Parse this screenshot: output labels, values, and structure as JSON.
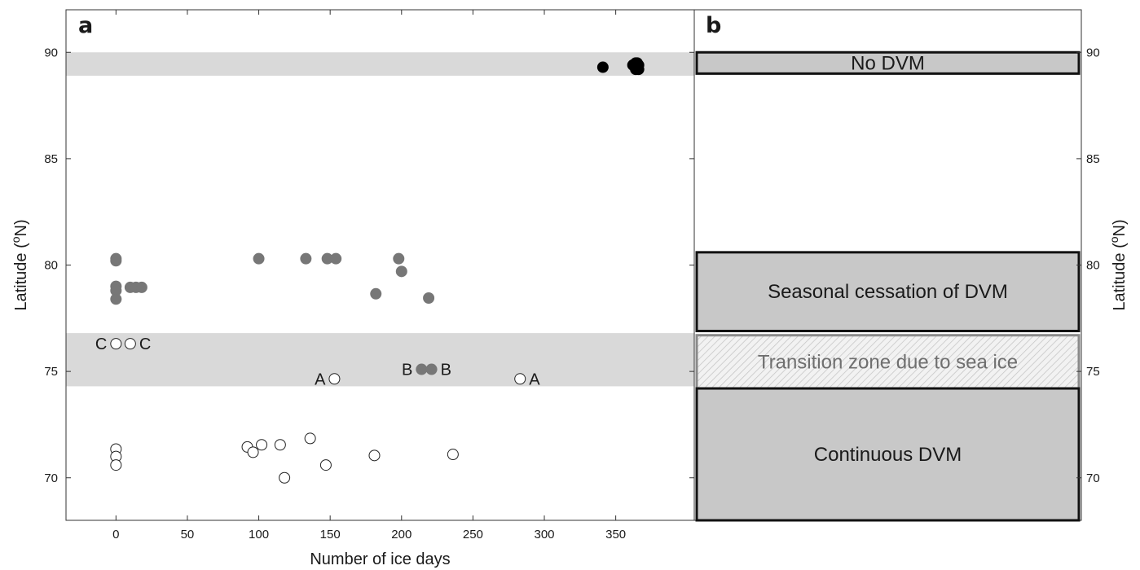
{
  "chart_data": [
    {
      "panel": "a",
      "type": "scatter",
      "xlabel": "Number of ice days",
      "ylabel": "Latitude (oN)",
      "ylabel_parts": {
        "prefix": "Latitude (",
        "sup": "o",
        "suffix": "N)"
      },
      "xlim": [
        -35,
        405
      ],
      "ylim": [
        68,
        92
      ],
      "xticks": [
        0,
        50,
        100,
        150,
        200,
        250,
        300,
        350
      ],
      "yticks": [
        70,
        75,
        80,
        85,
        90
      ],
      "grid": false,
      "shaded_bands": [
        {
          "y0": 88.9,
          "y1": 90.0,
          "color": "#d9d9d9"
        },
        {
          "y0": 74.3,
          "y1": 76.8,
          "color": "#d9d9d9"
        }
      ],
      "series": [
        {
          "fill": "#000000",
          "points": [
            [
              341,
              89.3
            ],
            [
              362,
              89.4
            ],
            [
              364,
              89.5
            ],
            [
              365,
              89.5
            ],
            [
              365,
              89.3
            ],
            [
              366,
              89.4
            ],
            [
              364,
              89.2
            ],
            [
              366,
              89.2
            ]
          ]
        },
        {
          "fill": "#777777",
          "points": [
            [
              0,
              80.2
            ],
            [
              0,
              80.3
            ],
            [
              0,
              79.0
            ],
            [
              0,
              78.8
            ],
            [
              0,
              78.4
            ],
            [
              10,
              78.95
            ],
            [
              14,
              78.95
            ],
            [
              18,
              78.95
            ],
            [
              100,
              80.3
            ],
            [
              133,
              80.3
            ],
            [
              148,
              80.3
            ],
            [
              154,
              80.3
            ],
            [
              182,
              78.65
            ],
            [
              198,
              80.3
            ],
            [
              200,
              79.7
            ],
            [
              219,
              78.45
            ],
            [
              214,
              75.1
            ],
            [
              221,
              75.1
            ]
          ]
        },
        {
          "fill": "#ffffff",
          "points": [
            [
              0,
              76.3
            ],
            [
              10,
              76.3
            ],
            [
              153,
              74.65
            ],
            [
              283,
              74.65
            ],
            [
              0,
              71.35
            ],
            [
              0,
              71.0
            ],
            [
              0,
              70.6
            ],
            [
              92,
              71.45
            ],
            [
              96,
              71.2
            ],
            [
              102,
              71.55
            ],
            [
              115,
              71.55
            ],
            [
              136,
              71.85
            ],
            [
              118,
              70.0
            ],
            [
              147,
              70.6
            ],
            [
              181,
              71.05
            ],
            [
              236,
              71.1
            ]
          ]
        }
      ],
      "annotations": [
        {
          "text": "C",
          "x": 0,
          "y": 76.3,
          "side": "left"
        },
        {
          "text": "C",
          "x": 10,
          "y": 76.3,
          "side": "right"
        },
        {
          "text": "A",
          "x": 153,
          "y": 74.65,
          "side": "left"
        },
        {
          "text": "B",
          "x": 214,
          "y": 75.1,
          "side": "left"
        },
        {
          "text": "B",
          "x": 221,
          "y": 75.1,
          "side": "right"
        },
        {
          "text": "A",
          "x": 283,
          "y": 74.65,
          "side": "right"
        }
      ]
    },
    {
      "panel": "b",
      "type": "table",
      "ylabel": "Latitude (oN)",
      "ylabel_parts": {
        "prefix": "Latitude (",
        "sup": "o",
        "suffix": "N)"
      },
      "ylim": [
        68,
        92
      ],
      "yticks": [
        70,
        75,
        80,
        85,
        90
      ],
      "zones": [
        {
          "label": "No DVM",
          "y0": 89.0,
          "y1": 90.0,
          "fill": "#c8c8c8",
          "style": "solid"
        },
        {
          "label": "Seasonal cessation of DVM",
          "y0": 76.9,
          "y1": 80.6,
          "fill": "#c8c8c8",
          "style": "solid"
        },
        {
          "label": "Transition zone due to sea ice",
          "y0": 74.2,
          "y1": 76.7,
          "fill": "#eeeeee",
          "style": "hatched"
        },
        {
          "label": "Continuous DVM",
          "y0": 68.0,
          "y1": 74.2,
          "fill": "#c8c8c8",
          "style": "solid"
        }
      ]
    }
  ],
  "panel_letters": {
    "a": "a",
    "b": "b"
  }
}
